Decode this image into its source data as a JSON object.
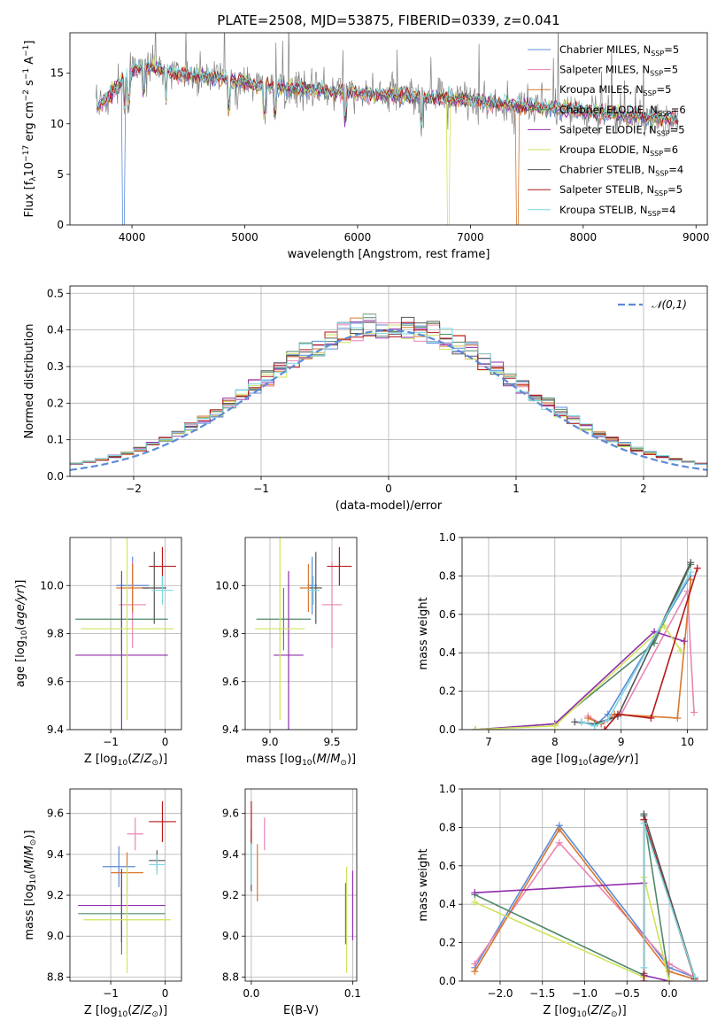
{
  "figure": {
    "title": "PLATE=2508, MJD=53875, FIBERID=0339, z=0.041"
  },
  "series": [
    {
      "name": "Chabrier MILES",
      "nssp": "5",
      "color": "#5b8bd8"
    },
    {
      "name": "Salpeter MILES",
      "nssp": "5",
      "color": "#e985b5"
    },
    {
      "name": "Kroupa MILES",
      "nssp": "5",
      "color": "#d9772f"
    },
    {
      "name": "Chabrier ELODIE",
      "nssp": "6",
      "color": "#4f8a69"
    },
    {
      "name": "Salpeter ELODIE",
      "nssp": "5",
      "color": "#8f2dab"
    },
    {
      "name": "Kroupa ELODIE",
      "nssp": "6",
      "color": "#cfe35c"
    },
    {
      "name": "Chabrier STELIB",
      "nssp": "4",
      "color": "#555555"
    },
    {
      "name": "Salpeter STELIB",
      "nssp": "5",
      "color": "#b41818"
    },
    {
      "name": "Kroupa STELIB",
      "nssp": "4",
      "color": "#7dd8e2"
    }
  ],
  "chart_data": [
    {
      "id": "spectrum",
      "type": "line",
      "xlabel": "wavelength [Angstrom, rest frame]",
      "ylabel": "Flux [f_λ 10^-17 erg cm^-2 s^-1 A^-1]",
      "xlim": [
        3450,
        9100
      ],
      "ylim": [
        0,
        19
      ],
      "xticks": [
        4000,
        5000,
        6000,
        7000,
        8000,
        9000
      ],
      "yticks": [
        0,
        5,
        10,
        15
      ],
      "grid": false,
      "legend": "top-right",
      "continuum_knots": {
        "x": [
          3680,
          3800,
          3900,
          4000,
          4100,
          4300,
          4500,
          4800,
          5100,
          5400,
          5800,
          6200,
          6600,
          7000,
          7400,
          7800,
          8200,
          8600,
          8850
        ],
        "y": [
          11.5,
          12.8,
          14.0,
          15.2,
          15.8,
          15.2,
          14.8,
          14.5,
          13.8,
          13.5,
          13.2,
          12.9,
          12.6,
          12.3,
          11.8,
          11.5,
          11.0,
          10.6,
          10.4
        ]
      },
      "model_drops": [
        {
          "series": "Chabrier MILES",
          "x": 3920
        },
        {
          "series": "Kroupa ELODIE",
          "x": 6800
        },
        {
          "series": "Kroupa MILES",
          "x": 7420
        }
      ],
      "data_color": "#808080"
    },
    {
      "id": "residuals",
      "type": "histogram",
      "xlabel": "(data-model)/error",
      "ylabel": "Normed distribution",
      "xlim": [
        -2.5,
        2.5
      ],
      "ylim": [
        0,
        0.52
      ],
      "xticks": [
        -2,
        -1,
        0,
        1,
        2
      ],
      "yticks": [
        0,
        0.1,
        0.2,
        0.3,
        0.4,
        0.5
      ],
      "grid": true,
      "bin_width": 0.1,
      "reference_curve": {
        "name": "𝒩(0,1)",
        "mean": 0,
        "sigma": 1,
        "color": "#5b8bd8"
      },
      "legend": "top-right"
    },
    {
      "id": "age_vs_Z",
      "type": "errorbar",
      "xlabel": "Z [log10(Z/Z⊙)]",
      "ylabel": "age  [log10(age/yr)]",
      "xlim": [
        -1.75,
        0.3
      ],
      "ylim": [
        9.4,
        10.2
      ],
      "xticks": [
        -1,
        0
      ],
      "yticks": [
        9.4,
        9.6,
        9.8,
        10.0
      ],
      "grid": true,
      "points": [
        {
          "series": "Chabrier MILES",
          "x": -0.6,
          "xerr": 0.3,
          "y": 10.0,
          "yerr": 0.12
        },
        {
          "series": "Salpeter MILES",
          "x": -0.6,
          "xerr": 0.25,
          "y": 9.92,
          "yerr": 0.18
        },
        {
          "series": "Kroupa MILES",
          "x": -0.6,
          "xerr": 0.3,
          "y": 9.99,
          "yerr": 0.1
        },
        {
          "series": "Chabrier ELODIE",
          "x": -0.8,
          "xerr": 0.85,
          "y": 9.86,
          "yerr": 0.13
        },
        {
          "series": "Salpeter ELODIE",
          "x": -0.8,
          "xerr": 0.85,
          "y": 9.71,
          "yerr": 0.35
        },
        {
          "series": "Kroupa ELODIE",
          "x": -0.7,
          "xerr": 0.85,
          "y": 9.82,
          "yerr": 0.38
        },
        {
          "series": "Chabrier STELIB",
          "x": -0.2,
          "xerr": 0.22,
          "y": 9.99,
          "yerr": 0.15
        },
        {
          "series": "Salpeter STELIB",
          "x": -0.05,
          "xerr": 0.25,
          "y": 10.08,
          "yerr": 0.08
        },
        {
          "series": "Kroupa STELIB",
          "x": -0.05,
          "xerr": 0.2,
          "y": 9.98,
          "yerr": 0.06
        }
      ]
    },
    {
      "id": "age_vs_mass",
      "type": "errorbar",
      "xlabel": "mass [log10(M/M⊙)]",
      "ylabel": "",
      "xlim": [
        8.8,
        9.7
      ],
      "ylim": [
        9.4,
        10.2
      ],
      "xticks": [
        9.0,
        9.5
      ],
      "yticks": [
        9.4,
        9.6,
        9.8,
        10.0
      ],
      "grid": true,
      "points": [
        {
          "series": "Chabrier MILES",
          "x": 9.34,
          "xerr": 0.04,
          "y": 10.0,
          "yerr": 0.12
        },
        {
          "series": "Salpeter MILES",
          "x": 9.5,
          "xerr": 0.08,
          "y": 9.92,
          "yerr": 0.18
        },
        {
          "series": "Kroupa MILES",
          "x": 9.31,
          "xerr": 0.07,
          "y": 9.99,
          "yerr": 0.1
        },
        {
          "series": "Chabrier ELODIE",
          "x": 9.11,
          "xerr": 0.22,
          "y": 9.86,
          "yerr": 0.13
        },
        {
          "series": "Salpeter ELODIE",
          "x": 9.15,
          "xerr": 0.12,
          "y": 9.71,
          "yerr": 0.35
        },
        {
          "series": "Kroupa ELODIE",
          "x": 9.08,
          "xerr": 0.2,
          "y": 9.82,
          "yerr": 0.38
        },
        {
          "series": "Chabrier STELIB",
          "x": 9.37,
          "xerr": 0.05,
          "y": 9.99,
          "yerr": 0.15
        },
        {
          "series": "Salpeter STELIB",
          "x": 9.56,
          "xerr": 0.1,
          "y": 10.08,
          "yerr": 0.08
        },
        {
          "series": "Kroupa STELIB",
          "x": 9.35,
          "xerr": 0.05,
          "y": 9.98,
          "yerr": 0.06
        }
      ]
    },
    {
      "id": "weight_vs_age",
      "type": "line",
      "xlabel": "age  [log10(age/yr)]",
      "ylabel": "mass weight",
      "xlim": [
        6.6,
        10.3
      ],
      "ylim": [
        0,
        1.0
      ],
      "xticks": [
        7,
        8,
        9,
        10
      ],
      "yticks": [
        0.0,
        0.2,
        0.4,
        0.6,
        0.8,
        1.0
      ],
      "grid": true,
      "lines": [
        {
          "series": "Chabrier MILES",
          "x": [
            8.4,
            8.6,
            8.8,
            10.05
          ],
          "y": [
            0.04,
            0.02,
            0.08,
            0.8
          ]
        },
        {
          "series": "Salpeter MILES",
          "x": [
            8.5,
            8.7,
            9.0,
            10.0,
            10.1
          ],
          "y": [
            0.07,
            0.03,
            0.08,
            0.72,
            0.09
          ]
        },
        {
          "series": "Kroupa MILES",
          "x": [
            8.5,
            8.7,
            8.9,
            9.85,
            10.05
          ],
          "y": [
            0.06,
            0.03,
            0.08,
            0.06,
            0.78
          ]
        },
        {
          "series": "Chabrier ELODIE",
          "x": [
            6.8,
            8.0,
            9.5,
            10.05
          ],
          "y": [
            0.0,
            0.03,
            0.45,
            0.86
          ]
        },
        {
          "series": "Salpeter ELODIE",
          "x": [
            6.8,
            8.0,
            9.5,
            9.95
          ],
          "y": [
            0.0,
            0.03,
            0.51,
            0.46
          ]
        },
        {
          "series": "Kroupa ELODIE",
          "x": [
            6.8,
            8.0,
            9.65,
            9.9
          ],
          "y": [
            0.0,
            0.02,
            0.54,
            0.41
          ]
        },
        {
          "series": "Chabrier STELIB",
          "x": [
            8.3,
            8.6,
            8.95,
            10.05
          ],
          "y": [
            0.04,
            0.03,
            0.07,
            0.87
          ]
        },
        {
          "series": "Salpeter STELIB",
          "x": [
            8.75,
            8.95,
            9.45,
            10.15
          ],
          "y": [
            0.0,
            0.08,
            0.06,
            0.84
          ]
        },
        {
          "series": "Kroupa STELIB",
          "x": [
            8.4,
            8.6,
            8.8,
            10.05
          ],
          "y": [
            0.04,
            0.02,
            0.05,
            0.82
          ]
        }
      ]
    },
    {
      "id": "mass_vs_Z",
      "type": "errorbar",
      "xlabel": "Z [log10(Z/Z⊙)]",
      "ylabel": "mass [log10(M/M⊙)]",
      "xlim": [
        -1.75,
        0.3
      ],
      "ylim": [
        8.78,
        9.72
      ],
      "xticks": [
        -1,
        0
      ],
      "yticks": [
        8.8,
        9.0,
        9.2,
        9.4,
        9.6
      ],
      "grid": true,
      "points": [
        {
          "series": "Chabrier MILES",
          "x": -0.85,
          "xerr": 0.3,
          "y": 9.34,
          "yerr": 0.1
        },
        {
          "series": "Salpeter MILES",
          "x": -0.55,
          "xerr": 0.15,
          "y": 9.5,
          "yerr": 0.08
        },
        {
          "series": "Kroupa MILES",
          "x": -0.7,
          "xerr": 0.3,
          "y": 9.31,
          "yerr": 0.1
        },
        {
          "series": "Chabrier ELODIE",
          "x": -0.8,
          "xerr": 0.8,
          "y": 9.11,
          "yerr": 0.2
        },
        {
          "series": "Salpeter ELODIE",
          "x": -0.8,
          "xerr": 0.8,
          "y": 9.15,
          "yerr": 0.18
        },
        {
          "series": "Kroupa ELODIE",
          "x": -0.7,
          "xerr": 0.8,
          "y": 9.08,
          "yerr": 0.26
        },
        {
          "series": "Chabrier STELIB",
          "x": -0.15,
          "xerr": 0.15,
          "y": 9.37,
          "yerr": 0.05
        },
        {
          "series": "Salpeter STELIB",
          "x": -0.05,
          "xerr": 0.25,
          "y": 9.56,
          "yerr": 0.1
        },
        {
          "series": "Kroupa STELIB",
          "x": -0.15,
          "xerr": 0.15,
          "y": 9.35,
          "yerr": 0.05
        }
      ]
    },
    {
      "id": "mass_vs_EBV",
      "type": "errorbar",
      "xlabel": "E(B-V)",
      "ylabel": "",
      "xlim": [
        -0.006,
        0.104
      ],
      "ylim": [
        8.78,
        9.72
      ],
      "xticks": [
        0.0,
        0.1
      ],
      "yticks": [
        8.8,
        9.0,
        9.2,
        9.4,
        9.6
      ],
      "grid": true,
      "points": [
        {
          "series": "Chabrier MILES",
          "x": 0.0,
          "y": 9.34,
          "yerr": 0.1
        },
        {
          "series": "Salpeter MILES",
          "x": 0.013,
          "y": 9.5,
          "yerr": 0.08
        },
        {
          "series": "Kroupa MILES",
          "x": 0.006,
          "y": 9.31,
          "yerr": 0.14
        },
        {
          "series": "Chabrier ELODIE",
          "x": 0.093,
          "y": 9.11,
          "yerr": 0.15
        },
        {
          "series": "Salpeter ELODIE",
          "x": 0.1,
          "y": 9.15,
          "yerr": 0.17
        },
        {
          "series": "Kroupa ELODIE",
          "x": 0.094,
          "y": 9.08,
          "yerr": 0.26
        },
        {
          "series": "Chabrier STELIB",
          "x": 0.0,
          "y": 9.37,
          "yerr": 0.15
        },
        {
          "series": "Salpeter STELIB",
          "x": 0.0,
          "y": 9.56,
          "yerr": 0.1
        },
        {
          "series": "Kroupa STELIB",
          "x": 0.0,
          "y": 9.35,
          "yerr": 0.1
        }
      ]
    },
    {
      "id": "weight_vs_Z",
      "type": "line",
      "xlabel": "Z [log10(Z/Z⊙)]",
      "ylabel": "mass weight",
      "xlim": [
        -2.45,
        0.45
      ],
      "ylim": [
        0,
        1.0
      ],
      "xticks": [
        -2.0,
        -1.5,
        -1.0,
        -0.5,
        0.0
      ],
      "yticks": [
        0.0,
        0.2,
        0.4,
        0.6,
        0.8,
        1.0
      ],
      "grid": true,
      "lines": [
        {
          "series": "Chabrier MILES",
          "x": [
            -2.3,
            -1.3,
            0.0,
            0.3
          ],
          "y": [
            0.07,
            0.81,
            0.07,
            0.02
          ]
        },
        {
          "series": "Salpeter MILES",
          "x": [
            -2.3,
            -1.3,
            0.0,
            0.3
          ],
          "y": [
            0.09,
            0.72,
            0.09,
            0.02
          ]
        },
        {
          "series": "Kroupa MILES",
          "x": [
            -2.3,
            -1.3,
            0.0,
            0.3
          ],
          "y": [
            0.05,
            0.79,
            0.05,
            0.01
          ]
        },
        {
          "series": "Chabrier ELODIE",
          "x": [
            -2.3,
            -0.3,
            -0.3,
            0.0
          ],
          "y": [
            0.45,
            0.03,
            0.86,
            0.0
          ]
        },
        {
          "series": "Salpeter ELODIE",
          "x": [
            -2.3,
            -0.3,
            -0.3,
            0.0
          ],
          "y": [
            0.46,
            0.51,
            0.03,
            0.0
          ]
        },
        {
          "series": "Kroupa ELODIE",
          "x": [
            -2.3,
            -0.3,
            -0.3,
            0.0
          ],
          "y": [
            0.41,
            0.02,
            0.54,
            0.0
          ]
        },
        {
          "series": "Chabrier STELIB",
          "x": [
            -0.3,
            -0.3,
            0.3
          ],
          "y": [
            0.04,
            0.87,
            0.02
          ]
        },
        {
          "series": "Salpeter STELIB",
          "x": [
            -0.3,
            -0.3,
            0.3
          ],
          "y": [
            0.0,
            0.84,
            0.01
          ]
        },
        {
          "series": "Kroupa STELIB",
          "x": [
            -0.3,
            -0.3,
            0.3
          ],
          "y": [
            0.07,
            0.82,
            0.02
          ]
        }
      ]
    }
  ]
}
